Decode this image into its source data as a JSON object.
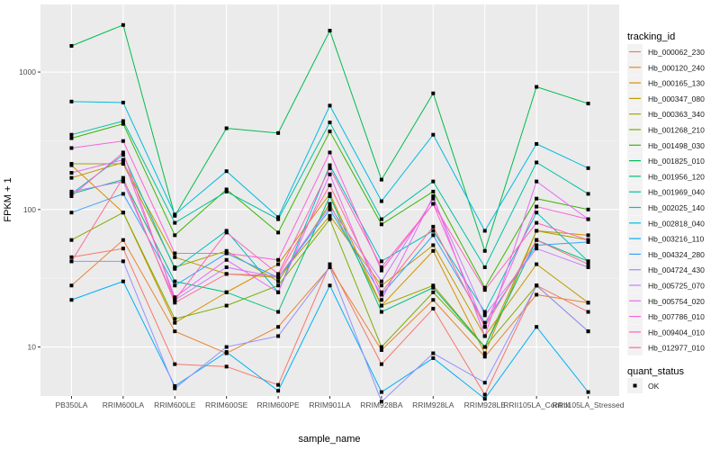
{
  "chart_data": {
    "type": "line",
    "xlabel": "sample_name",
    "ylabel": "FPKM + 1",
    "y_scale": "log10",
    "ylim": [
      4.4,
      3100
    ],
    "y_ticks": [
      10,
      100,
      1000
    ],
    "y_tick_labels": [
      "10",
      "100",
      "1000"
    ],
    "grid": true,
    "legend_position": "right",
    "categories": [
      "PB350LA",
      "RRIM600LA",
      "RRIM600LE",
      "RRIM600SE",
      "RRIM600PE",
      "RRIM901LA",
      "RRIM928BA",
      "RRIM928LA",
      "RRIM928LE",
      "RRII105LA_Control",
      "RRII105LA_Stressed"
    ],
    "legend_title": "tracking_id",
    "series": [
      {
        "name": "Hb_000062_230",
        "color": "#F8766D",
        "values": [
          45,
          52,
          7.5,
          7.2,
          5.3,
          40,
          7.5,
          19,
          4.5,
          28,
          18
        ]
      },
      {
        "name": "Hb_000120_240",
        "color": "#EA8331",
        "values": [
          28,
          60,
          13,
          9,
          14,
          38,
          9.5,
          22,
          8.5,
          24,
          21
        ]
      },
      {
        "name": "Hb_000165_130",
        "color": "#D89000",
        "values": [
          210,
          95,
          15,
          25,
          40,
          130,
          20,
          50,
          9,
          70,
          65
        ]
      },
      {
        "name": "Hb_000347_080",
        "color": "#C09B00",
        "values": [
          170,
          220,
          45,
          34,
          32,
          90,
          28,
          55,
          12,
          40,
          21
        ]
      },
      {
        "name": "Hb_000363_340",
        "color": "#A3A500",
        "values": [
          215,
          215,
          38,
          50,
          30,
          110,
          20,
          28,
          10,
          70,
          60
        ]
      },
      {
        "name": "Hb_001268_210",
        "color": "#7CAE00",
        "values": [
          60,
          95,
          16,
          20,
          28,
          85,
          10,
          25,
          10,
          28,
          13
        ]
      },
      {
        "name": "Hb_001498_030",
        "color": "#39B600",
        "values": [
          330,
          420,
          65,
          140,
          68,
          370,
          78,
          135,
          27,
          120,
          100
        ]
      },
      {
        "name": "Hb_001825_010",
        "color": "#00BB4E",
        "values": [
          1550,
          2200,
          90,
          390,
          360,
          2000,
          165,
          700,
          50,
          780,
          590
        ]
      },
      {
        "name": "Hb_001956_120",
        "color": "#00BF7D",
        "values": [
          130,
          165,
          30,
          25,
          18,
          125,
          18,
          27,
          10,
          60,
          42
        ]
      },
      {
        "name": "Hb_001969_040",
        "color": "#00C1A3",
        "values": [
          350,
          440,
          80,
          135,
          85,
          430,
          85,
          160,
          38,
          220,
          130
        ]
      },
      {
        "name": "Hb_002025_140",
        "color": "#00BFC4",
        "values": [
          130,
          250,
          37,
          70,
          25,
          210,
          42,
          70,
          18,
          95,
          42
        ]
      },
      {
        "name": "Hb_002818_040",
        "color": "#00BAE0",
        "values": [
          610,
          600,
          92,
          190,
          88,
          570,
          115,
          350,
          70,
          300,
          200
        ]
      },
      {
        "name": "Hb_003216_110",
        "color": "#00B0F6",
        "values": [
          22,
          30,
          5.2,
          9.2,
          4.8,
          28,
          4.7,
          8.3,
          4.2,
          14,
          4.7
        ]
      },
      {
        "name": "Hb_004324_280",
        "color": "#35A2FF",
        "values": [
          95,
          130,
          28,
          48,
          32,
          100,
          24,
          65,
          15,
          55,
          58
        ]
      },
      {
        "name": "Hb_004724_430",
        "color": "#9590FF",
        "values": [
          42,
          42,
          5,
          10,
          12,
          38,
          4,
          9,
          5.5,
          28,
          13
        ]
      },
      {
        "name": "Hb_005725_070",
        "color": "#C77CFF",
        "values": [
          135,
          160,
          22,
          38,
          32,
          105,
          30,
          120,
          17,
          52,
          38
        ]
      },
      {
        "name": "Hb_005754_020",
        "color": "#E76BF3",
        "values": [
          185,
          230,
          23,
          43,
          25,
          180,
          22,
          125,
          12,
          160,
          85
        ]
      },
      {
        "name": "Hb_007786_010",
        "color": "#FA62DB",
        "values": [
          280,
          315,
          48,
          48,
          43,
          260,
          36,
          110,
          14,
          105,
          85
        ]
      },
      {
        "name": "Hb_009404_010",
        "color": "#FF62BC",
        "values": [
          125,
          260,
          22,
          68,
          34,
          200,
          38,
          110,
          26,
          80,
          60
        ]
      },
      {
        "name": "Hb_012977_010",
        "color": "#FF6C91",
        "values": [
          42,
          170,
          21,
          34,
          33,
          150,
          25,
          75,
          14,
          60,
          40
        ]
      }
    ],
    "shape_legend_title": "quant_status",
    "shape_legend_items": [
      "OK"
    ]
  }
}
